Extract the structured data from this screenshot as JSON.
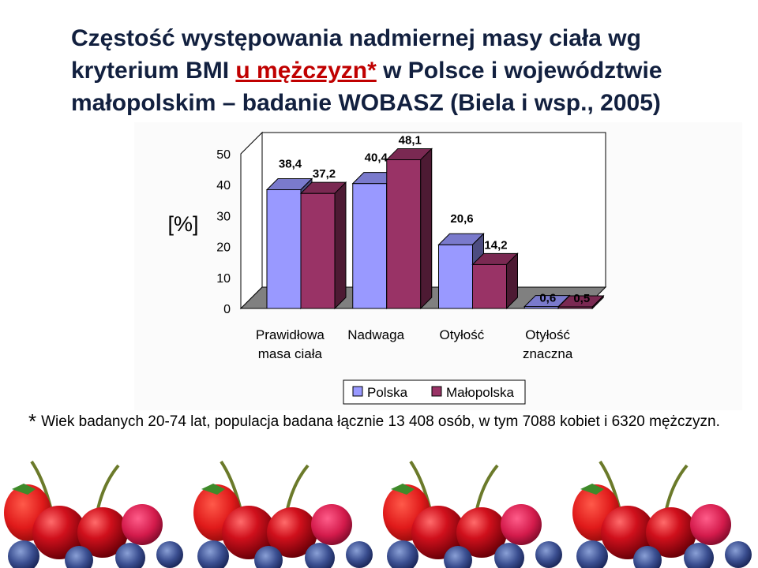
{
  "title": {
    "part1": "Częstość występowania nadmiernej masy ciała wg kryterium BMI ",
    "highlight": "u mężczyzn*",
    "part2": " w Polsce i województwie małopolskim – badanie WOBASZ (Biela i wsp., 2005)"
  },
  "chart_data": {
    "type": "bar",
    "ylabel": "[%]",
    "ylim": [
      0,
      50
    ],
    "yticks": [
      0,
      10,
      20,
      30,
      40,
      50
    ],
    "categories": [
      [
        "Prawidłowa",
        "masa ciała"
      ],
      [
        "Nadwaga"
      ],
      [
        "Otyłość"
      ],
      [
        "Otyłość",
        "znaczna"
      ]
    ],
    "series": [
      {
        "name": "Polska",
        "values": [
          38.4,
          40.4,
          20.6,
          0.6
        ],
        "labels": [
          "38,4",
          "40,4",
          "20,6",
          "0,6"
        ],
        "color": "#9999ff"
      },
      {
        "name": "Małopolska",
        "values": [
          37.2,
          48.1,
          14.2,
          0.5
        ],
        "labels": [
          "37,2",
          "48,1",
          "14,2",
          "0,5"
        ],
        "color": "#993366"
      }
    ],
    "legend_position": "bottom",
    "grid": false
  },
  "footnote": {
    "star": "*",
    "text": "Wiek badanych 20-74 lat, populacja badana łącznie 13 408 osób, w tym 7088 kobiet i 6320 mężczyzn."
  }
}
